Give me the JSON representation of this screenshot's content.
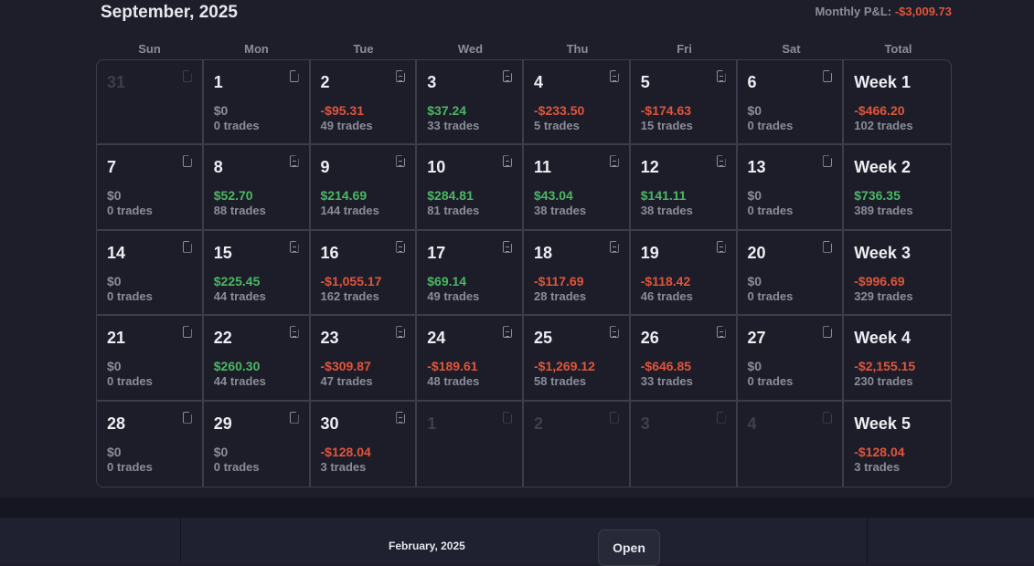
{
  "header": {
    "title": "September, 2025",
    "pnl_label": "Monthly P&L:",
    "pnl_value": "-$3,009.73"
  },
  "weekdays": [
    "Sun",
    "Mon",
    "Tue",
    "Wed",
    "Thu",
    "Fri",
    "Sat",
    "Total"
  ],
  "rows": [
    [
      {
        "d": "31",
        "muted": true
      },
      {
        "d": "1",
        "a": "$0",
        "t": "0 trades"
      },
      {
        "d": "2",
        "a": "-$95.31",
        "t": "49 trades"
      },
      {
        "d": "3",
        "a": "$37.24",
        "t": "33 trades"
      },
      {
        "d": "4",
        "a": "-$233.50",
        "t": "5 trades"
      },
      {
        "d": "5",
        "a": "-$174.63",
        "t": "15 trades"
      },
      {
        "d": "6",
        "a": "$0",
        "t": "0 trades"
      },
      {
        "d": "Week 1",
        "a": "-$466.20",
        "t": "102 trades",
        "total": true
      }
    ],
    [
      {
        "d": "7",
        "a": "$0",
        "t": "0 trades"
      },
      {
        "d": "8",
        "a": "$52.70",
        "t": "88 trades"
      },
      {
        "d": "9",
        "a": "$214.69",
        "t": "144 trades"
      },
      {
        "d": "10",
        "a": "$284.81",
        "t": "81 trades"
      },
      {
        "d": "11",
        "a": "$43.04",
        "t": "38 trades"
      },
      {
        "d": "12",
        "a": "$141.11",
        "t": "38 trades"
      },
      {
        "d": "13",
        "a": "$0",
        "t": "0 trades"
      },
      {
        "d": "Week 2",
        "a": "$736.35",
        "t": "389 trades",
        "total": true
      }
    ],
    [
      {
        "d": "14",
        "a": "$0",
        "t": "0 trades"
      },
      {
        "d": "15",
        "a": "$225.45",
        "t": "44 trades"
      },
      {
        "d": "16",
        "a": "-$1,055.17",
        "t": "162 trades"
      },
      {
        "d": "17",
        "a": "$69.14",
        "t": "49 trades"
      },
      {
        "d": "18",
        "a": "-$117.69",
        "t": "28 trades"
      },
      {
        "d": "19",
        "a": "-$118.42",
        "t": "46 trades"
      },
      {
        "d": "20",
        "a": "$0",
        "t": "0 trades"
      },
      {
        "d": "Week 3",
        "a": "-$996.69",
        "t": "329 trades",
        "total": true
      }
    ],
    [
      {
        "d": "21",
        "a": "$0",
        "t": "0 trades"
      },
      {
        "d": "22",
        "a": "$260.30",
        "t": "44 trades"
      },
      {
        "d": "23",
        "a": "-$309.87",
        "t": "47 trades"
      },
      {
        "d": "24",
        "a": "-$189.61",
        "t": "48 trades"
      },
      {
        "d": "25",
        "a": "-$1,269.12",
        "t": "58 trades"
      },
      {
        "d": "26",
        "a": "-$646.85",
        "t": "33 trades"
      },
      {
        "d": "27",
        "a": "$0",
        "t": "0 trades"
      },
      {
        "d": "Week 4",
        "a": "-$2,155.15",
        "t": "230 trades",
        "total": true
      }
    ],
    [
      {
        "d": "28",
        "a": "$0",
        "t": "0 trades"
      },
      {
        "d": "29",
        "a": "$0",
        "t": "0 trades"
      },
      {
        "d": "30",
        "a": "-$128.04",
        "t": "3 trades"
      },
      {
        "d": "1",
        "muted": true
      },
      {
        "d": "2",
        "muted": true
      },
      {
        "d": "3",
        "muted": true
      },
      {
        "d": "4",
        "muted": true
      },
      {
        "d": "Week 5",
        "a": "-$128.04",
        "t": "3 trades",
        "total": true
      }
    ]
  ],
  "bottom": {
    "month": "February, 2025",
    "open_label": "Open"
  },
  "colors": {
    "positive": "#4cb763",
    "negative": "#e0553c",
    "neutral": "#8a8d99"
  }
}
